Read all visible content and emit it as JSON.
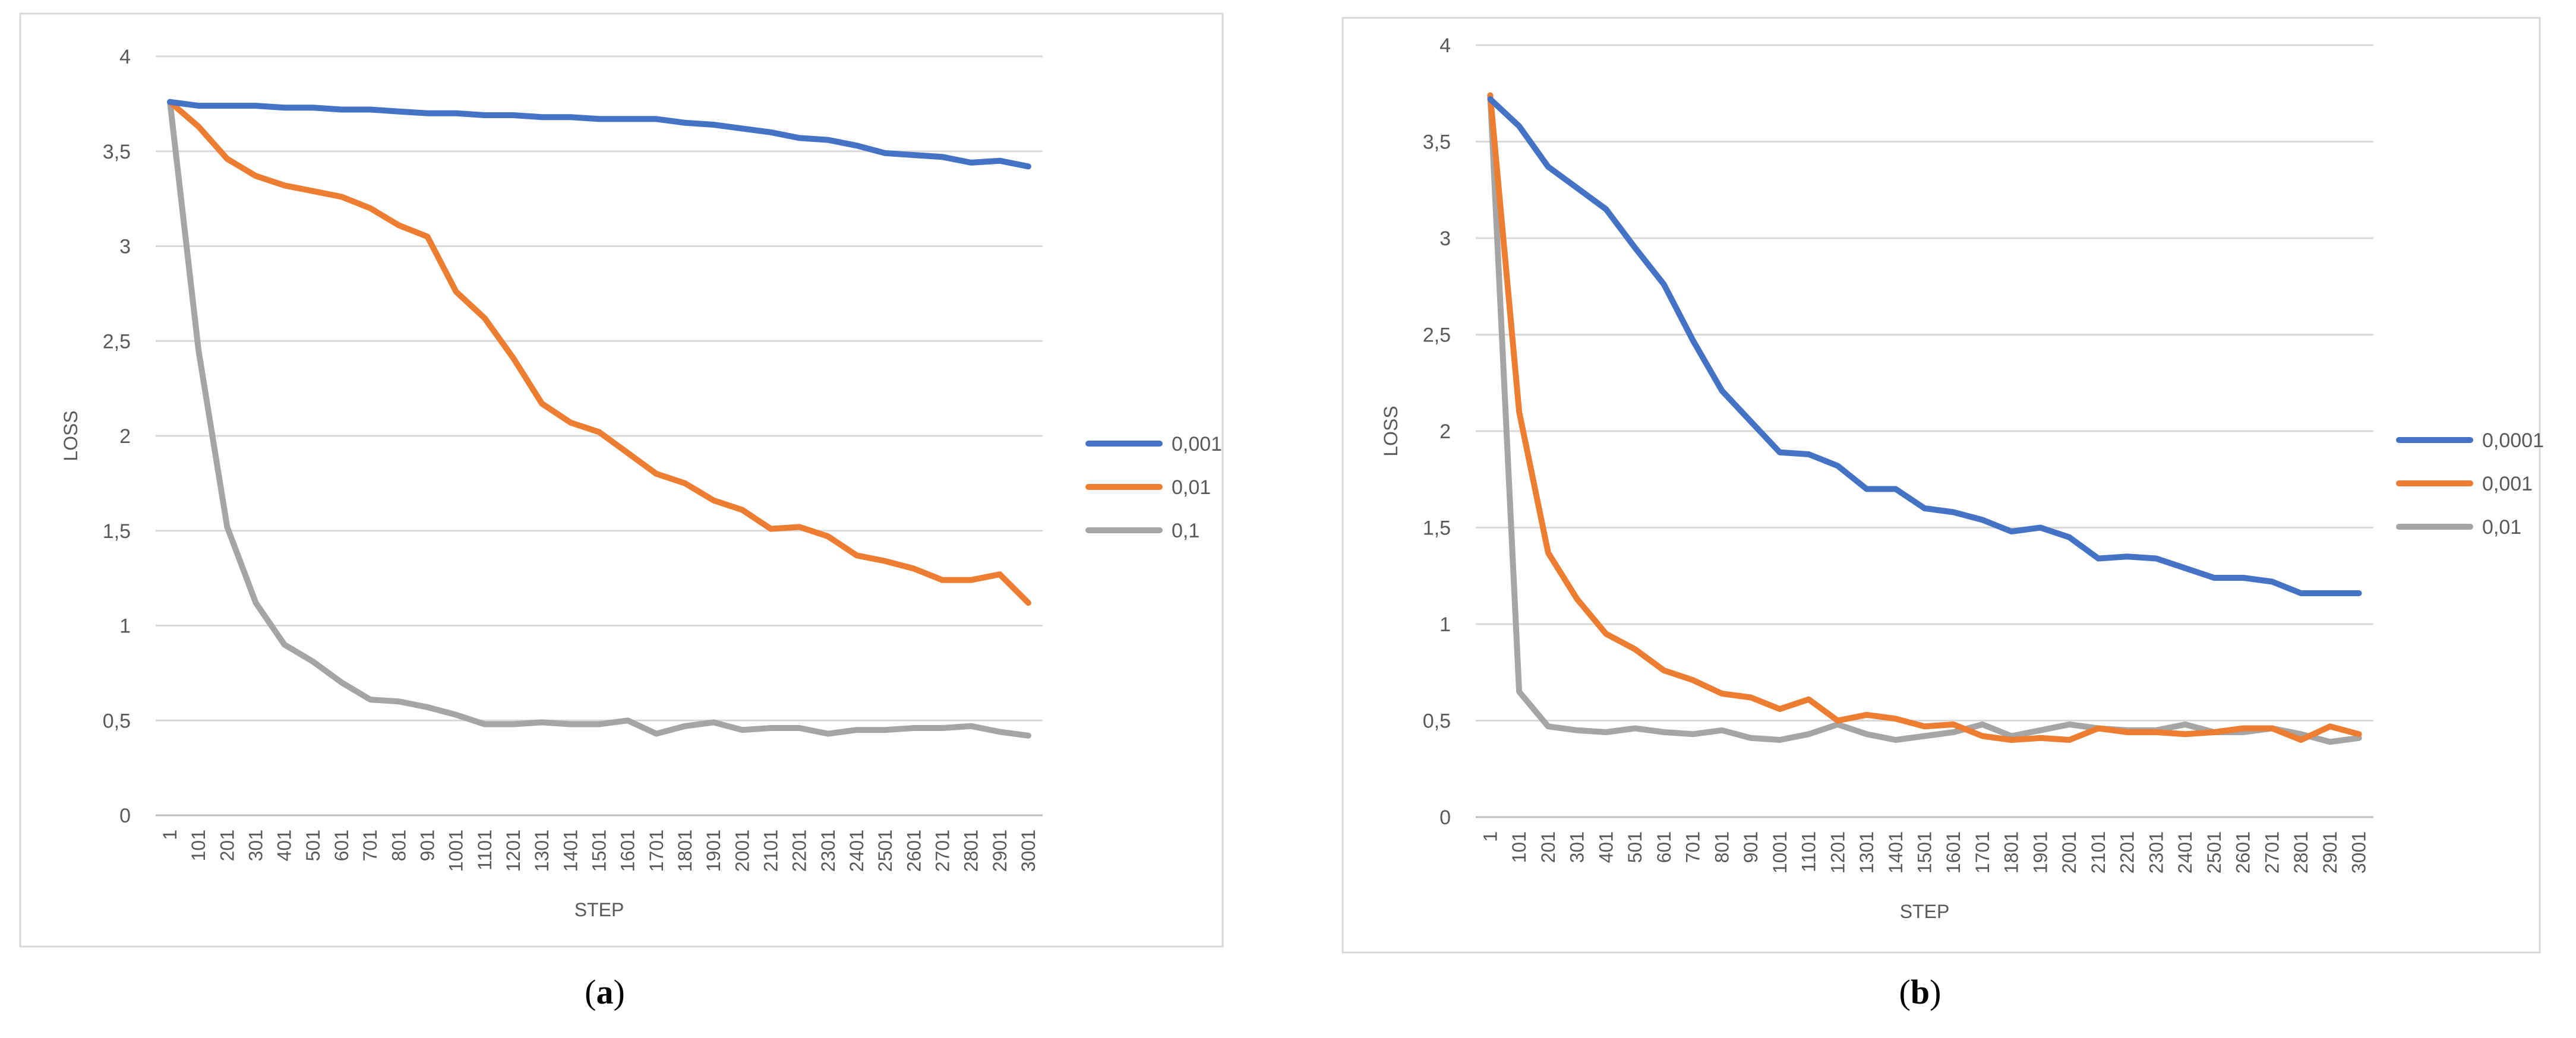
{
  "colors": {
    "blue": "#4472C4",
    "orange": "#ED7D31",
    "gray": "#A5A5A5",
    "grid": "#D9D9D9",
    "frame": "#D9D9D9",
    "text": "#595959"
  },
  "chart_data": [
    {
      "id": "a",
      "type": "line",
      "caption_open": "(",
      "caption_letter": "a",
      "caption_close": ")",
      "xlabel": "STEP",
      "ylabel": "LOSS",
      "ylim": [
        0,
        4
      ],
      "yticks": [
        "0",
        "0,5",
        "1",
        "1,5",
        "2",
        "2,5",
        "3",
        "3,5",
        "4"
      ],
      "categories": [
        "1",
        "101",
        "201",
        "301",
        "401",
        "501",
        "601",
        "701",
        "801",
        "901",
        "1001",
        "1101",
        "1201",
        "1301",
        "1401",
        "1501",
        "1601",
        "1701",
        "1801",
        "1901",
        "2001",
        "2101",
        "2201",
        "2301",
        "2401",
        "2501",
        "2601",
        "2701",
        "2801",
        "2901",
        "3001"
      ],
      "legend_position": "right",
      "series": [
        {
          "name": "0,001",
          "color": "#4472C4",
          "values": [
            3.76,
            3.74,
            3.74,
            3.74,
            3.73,
            3.73,
            3.72,
            3.72,
            3.71,
            3.7,
            3.7,
            3.69,
            3.69,
            3.68,
            3.68,
            3.67,
            3.67,
            3.67,
            3.65,
            3.64,
            3.62,
            3.6,
            3.57,
            3.56,
            3.53,
            3.49,
            3.48,
            3.47,
            3.44,
            3.45,
            3.42
          ]
        },
        {
          "name": "0,01",
          "color": "#ED7D31",
          "values": [
            3.76,
            3.63,
            3.46,
            3.37,
            3.32,
            3.29,
            3.26,
            3.2,
            3.11,
            3.05,
            2.76,
            2.62,
            2.41,
            2.17,
            2.07,
            2.02,
            1.91,
            1.8,
            1.75,
            1.66,
            1.61,
            1.51,
            1.52,
            1.47,
            1.37,
            1.34,
            1.3,
            1.24,
            1.24,
            1.27,
            1.12
          ]
        },
        {
          "name": "0,1",
          "color": "#A5A5A5",
          "values": [
            3.76,
            2.45,
            1.52,
            1.12,
            0.9,
            0.81,
            0.7,
            0.61,
            0.6,
            0.57,
            0.53,
            0.48,
            0.48,
            0.49,
            0.48,
            0.48,
            0.5,
            0.43,
            0.47,
            0.49,
            0.45,
            0.46,
            0.46,
            0.43,
            0.45,
            0.45,
            0.46,
            0.46,
            0.47,
            0.44,
            0.42
          ]
        }
      ]
    },
    {
      "id": "b",
      "type": "line",
      "caption_open": "(",
      "caption_letter": "b",
      "caption_close": ")",
      "xlabel": "STEP",
      "ylabel": "LOSS",
      "ylim": [
        0,
        4
      ],
      "yticks": [
        "0",
        "0,5",
        "1",
        "1,5",
        "2",
        "2,5",
        "3",
        "3,5",
        "4"
      ],
      "categories": [
        "1",
        "101",
        "201",
        "301",
        "401",
        "501",
        "601",
        "701",
        "801",
        "901",
        "1001",
        "1101",
        "1201",
        "1301",
        "1401",
        "1501",
        "1601",
        "1701",
        "1801",
        "1901",
        "2001",
        "2101",
        "2201",
        "2301",
        "2401",
        "2501",
        "2601",
        "2701",
        "2801",
        "2901",
        "3001"
      ],
      "legend_position": "right",
      "series": [
        {
          "name": "0,0001",
          "color": "#4472C4",
          "values": [
            3.72,
            3.58,
            3.37,
            3.26,
            3.15,
            2.95,
            2.76,
            2.47,
            2.21,
            2.05,
            1.89,
            1.88,
            1.82,
            1.7,
            1.7,
            1.6,
            1.58,
            1.54,
            1.48,
            1.5,
            1.45,
            1.34,
            1.35,
            1.34,
            1.29,
            1.24,
            1.24,
            1.22,
            1.16,
            1.16,
            1.16
          ]
        },
        {
          "name": "0,001",
          "color": "#ED7D31",
          "values": [
            3.74,
            2.1,
            1.37,
            1.13,
            0.95,
            0.87,
            0.76,
            0.71,
            0.64,
            0.62,
            0.56,
            0.61,
            0.5,
            0.53,
            0.51,
            0.47,
            0.48,
            0.42,
            0.4,
            0.41,
            0.4,
            0.46,
            0.44,
            0.44,
            0.43,
            0.44,
            0.46,
            0.46,
            0.4,
            0.47,
            0.43
          ]
        },
        {
          "name": "0,01",
          "color": "#A5A5A5",
          "values": [
            3.74,
            0.65,
            0.47,
            0.45,
            0.44,
            0.46,
            0.44,
            0.43,
            0.45,
            0.41,
            0.4,
            0.43,
            0.48,
            0.43,
            0.4,
            0.42,
            0.44,
            0.48,
            0.42,
            0.45,
            0.48,
            0.46,
            0.45,
            0.45,
            0.48,
            0.44,
            0.44,
            0.46,
            0.43,
            0.39,
            0.41
          ]
        }
      ]
    }
  ]
}
